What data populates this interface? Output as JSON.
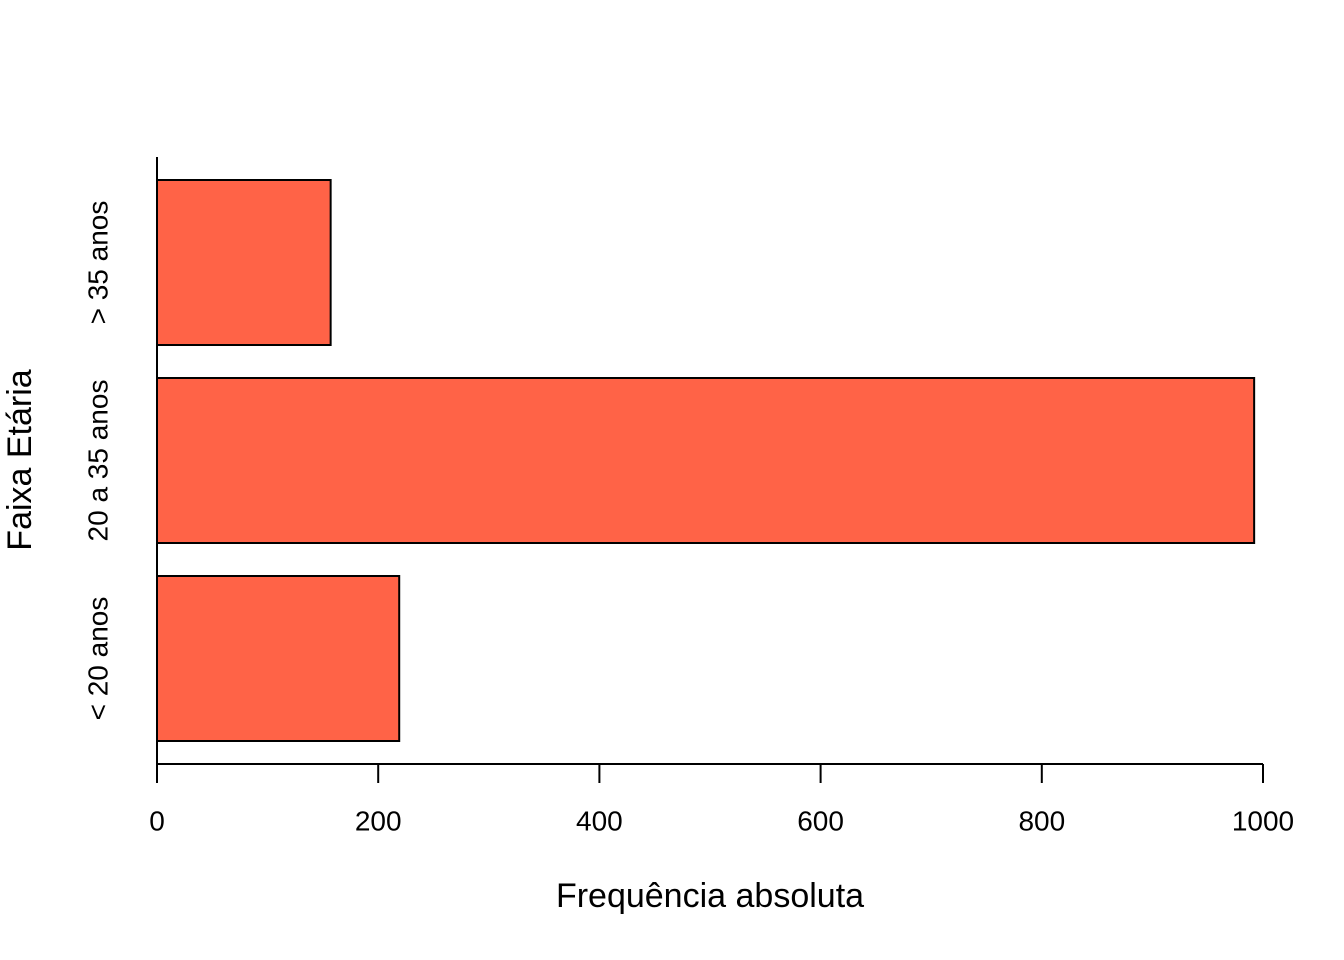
{
  "chart_data": {
    "type": "bar",
    "orientation": "horizontal",
    "x_label": "Frequência absoluta",
    "y_label": "Faixa Etária",
    "categories": [
      "< 20 anos",
      "20 a 35 anos",
      "> 35 anos"
    ],
    "values": [
      219,
      992,
      157
    ],
    "color": "#ff6347",
    "xlim": [
      0,
      1000
    ],
    "xticks": [
      0,
      200,
      400,
      600,
      800,
      1000
    ],
    "grid": false
  }
}
